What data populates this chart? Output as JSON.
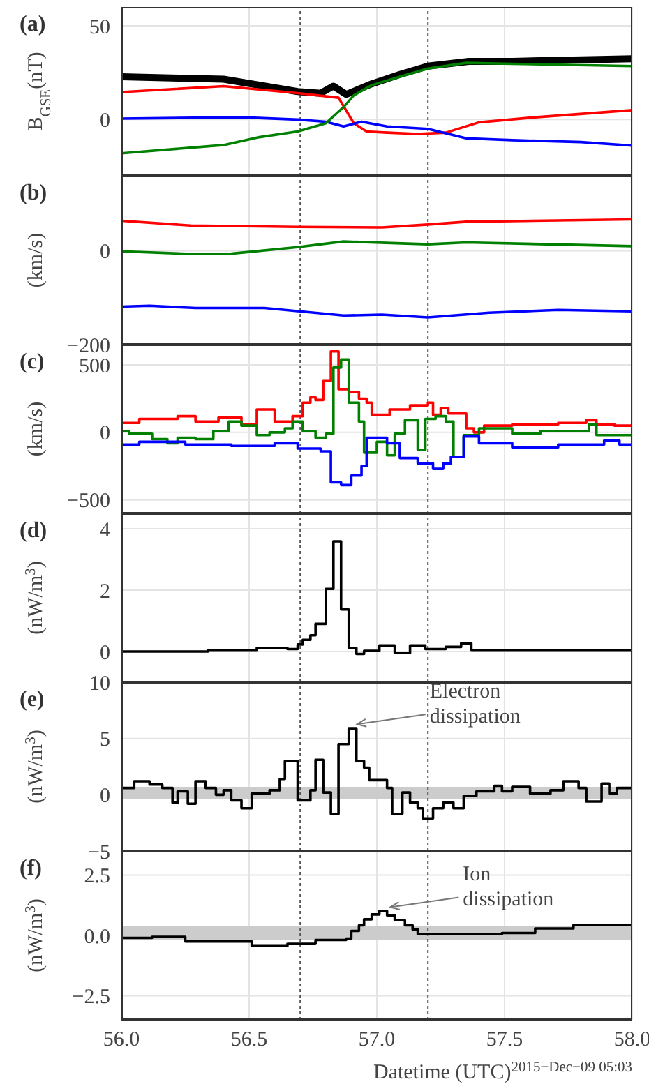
{
  "chart_data": [
    {
      "type": "line",
      "title": "(a)",
      "ylabel": "B$_{GSE}$(nT)",
      "xlim": [
        56,
        58
      ],
      "xticks": [
        56,
        56.5,
        57,
        57.5,
        58
      ],
      "ylim": [
        -30,
        60
      ],
      "yticks": [
        0,
        50
      ],
      "grid": true,
      "tick_labels": "y",
      "ref_lines": [
        {
          "axis": "x",
          "value": 56.7,
          "color": "#555555",
          "line_style": "dotted"
        },
        {
          "axis": "x",
          "value": 57.2,
          "color": "#555555",
          "line_style": "dotted"
        }
      ],
      "series": [
        {
          "color": "#000000",
          "x": [
            56,
            56.4,
            56.51,
            56.69,
            56.78,
            56.83,
            56.88,
            56.98,
            57.09,
            57.2,
            57.36,
            57.53,
            58
          ],
          "values": [
            22.8,
            21.5,
            19,
            14.9,
            14,
            17.8,
            13.4,
            19,
            24,
            28.5,
            31,
            31,
            32.4
          ]
        },
        {
          "color": "#ff0000",
          "x": [
            56,
            56.4,
            56.69,
            56.85,
            56.91,
            56.96,
            57.04,
            57.16,
            57.27,
            57.4,
            57.62,
            58
          ],
          "values": [
            14.6,
            17.8,
            14.1,
            11.6,
            -2,
            -6.4,
            -7,
            -7.7,
            -7,
            -1.5,
            1.2,
            5
          ]
        },
        {
          "color": "#0000ff",
          "x": [
            56,
            56.47,
            56.69,
            56.8,
            56.87,
            56.94,
            57.04,
            57.2,
            57.35,
            57.53,
            57.8,
            58
          ],
          "values": [
            0.5,
            1.2,
            0,
            -1.2,
            -3.7,
            -1.2,
            -3.7,
            -5,
            -10,
            -11,
            -12,
            -13.9
          ]
        },
        {
          "color": "#008000",
          "x": [
            56,
            56.4,
            56.54,
            56.69,
            56.8,
            56.87,
            56.91,
            56.98,
            57.09,
            57.2,
            57.35,
            57.53,
            58
          ],
          "values": [
            -18,
            -13.6,
            -9.4,
            -6.4,
            -2,
            6.7,
            12.9,
            18.3,
            22.8,
            27.2,
            30.2,
            29.7,
            28.5
          ]
        }
      ]
    },
    {
      "type": "line",
      "title": "(b)",
      "ylabel": "(km/s)",
      "xlim": [
        56,
        58
      ],
      "xticks": [
        56,
        56.5,
        57,
        57.5,
        58
      ],
      "ylim": [
        -200,
        160
      ],
      "yticks": [
        {
          "value": -200,
          "label": "−200"
        },
        0
      ],
      "grid": true,
      "tick_labels": "y",
      "ref_lines": [
        {
          "axis": "x",
          "value": 56.7,
          "color": "#555555",
          "line_style": "dotted"
        },
        {
          "axis": "x",
          "value": 57.2,
          "color": "#555555",
          "line_style": "dotted"
        }
      ],
      "series": [
        {
          "color": "#ff0000",
          "x": [
            56,
            56.27,
            56.69,
            57.02,
            57.2,
            57.35,
            58
          ],
          "values": [
            64,
            54,
            51,
            50,
            56,
            62,
            67
          ]
        },
        {
          "color": "#008000",
          "x": [
            56,
            56.29,
            56.43,
            56.69,
            56.87,
            57.2,
            57.35,
            58
          ],
          "values": [
            -1,
            -7,
            -6,
            8,
            20,
            14,
            18,
            10
          ]
        },
        {
          "color": "#0000ff",
          "x": [
            56,
            56.11,
            56.29,
            56.56,
            56.87,
            57.02,
            57.2,
            57.44,
            57.71,
            58
          ],
          "values": [
            -119,
            -117,
            -122,
            -122,
            -138,
            -136,
            -142,
            -132,
            -126,
            -129
          ]
        }
      ]
    },
    {
      "type": "step",
      "title": "(c)",
      "ylabel": "(km/s)",
      "xlim": [
        56,
        58
      ],
      "xticks": [
        56,
        56.5,
        57,
        57.5,
        58
      ],
      "ylim": [
        -600,
        650
      ],
      "yticks": [
        {
          "value": -500,
          "label": "−500"
        },
        0,
        500
      ],
      "grid": true,
      "tick_labels": "y",
      "ref_lines": [
        {
          "axis": "x",
          "value": 56.7,
          "color": "#555555",
          "line_style": "dotted"
        },
        {
          "axis": "x",
          "value": 57.2,
          "color": "#555555",
          "line_style": "dotted"
        }
      ],
      "series": [
        {
          "color": "#ff0000",
          "x": [
            56,
            56.07,
            56.18,
            56.22,
            56.29,
            56.38,
            56.47,
            56.53,
            56.6,
            56.67,
            56.71,
            56.74,
            56.76,
            56.79,
            56.82,
            56.85,
            56.89,
            56.93,
            56.96,
            56.98,
            57.05,
            57.13,
            57.2,
            57.22,
            57.25,
            57.28,
            57.35,
            57.38,
            57.42,
            57.53,
            57.71,
            57.82,
            57.86,
            57.93,
            58
          ],
          "values": [
            70,
            100,
            100,
            120,
            80,
            110,
            60,
            170,
            80,
            120,
            220,
            260,
            240,
            380,
            600,
            320,
            300,
            250,
            220,
            130,
            170,
            200,
            220,
            130,
            180,
            140,
            30,
            0,
            50,
            60,
            70,
            90,
            60,
            50,
            40
          ]
        },
        {
          "color": "#008000",
          "x": [
            56,
            56.03,
            56.12,
            56.18,
            56.22,
            56.29,
            56.36,
            56.42,
            56.47,
            56.53,
            56.58,
            56.64,
            56.67,
            56.71,
            56.76,
            56.8,
            56.83,
            56.86,
            56.89,
            56.93,
            56.95,
            57,
            57.04,
            57.07,
            57.11,
            57.16,
            57.19,
            57.23,
            57.27,
            57.3,
            57.34,
            57.4,
            57.53,
            57.64,
            57.79,
            57.83,
            57.86,
            58
          ],
          "values": [
            10,
            -10,
            -50,
            -80,
            -40,
            -50,
            10,
            80,
            50,
            -20,
            0,
            30,
            80,
            10,
            -40,
            -10,
            480,
            540,
            220,
            80,
            -150,
            -70,
            -170,
            -10,
            90,
            -130,
            100,
            120,
            80,
            -180,
            -20,
            30,
            -10,
            10,
            10,
            60,
            -20,
            -50
          ]
        },
        {
          "color": "#0000ff",
          "x": [
            56,
            56.07,
            56.25,
            56.43,
            56.6,
            56.69,
            56.78,
            56.82,
            56.86,
            56.9,
            56.94,
            56.96,
            57.04,
            57.09,
            57.16,
            57.22,
            57.26,
            57.29,
            57.34,
            57.4,
            57.53,
            57.71,
            57.89,
            57.95,
            58
          ],
          "values": [
            -90,
            -70,
            -90,
            -100,
            -80,
            -120,
            -140,
            -370,
            -390,
            -320,
            -250,
            -40,
            -80,
            -190,
            -230,
            -270,
            -230,
            -180,
            -30,
            -80,
            -110,
            -90,
            -60,
            -90,
            -100
          ]
        }
      ]
    },
    {
      "type": "step",
      "title": "(d)",
      "ylabel": "(nW/m$^{3}$)",
      "xlim": [
        56,
        58
      ],
      "xticks": [
        56,
        56.5,
        57,
        57.5,
        58
      ],
      "ylim": [
        -1,
        4.5
      ],
      "yticks": [
        0,
        2,
        4
      ],
      "grid": true,
      "tick_labels": "y",
      "ref_lines": [
        {
          "axis": "x",
          "value": 56.7,
          "color": "#555555",
          "line_style": "dotted"
        },
        {
          "axis": "x",
          "value": 57.2,
          "color": "#555555",
          "line_style": "dotted"
        }
      ],
      "series": [
        {
          "color": "#000000",
          "x": [
            56,
            56.34,
            56.53,
            56.65,
            56.69,
            56.71,
            56.74,
            56.76,
            56.8,
            56.83,
            56.86,
            56.89,
            56.92,
            56.95,
            57.01,
            57.07,
            57.13,
            57.19,
            57.27,
            57.33,
            57.37,
            58
          ],
          "values": [
            0,
            0.05,
            0.12,
            0.08,
            0.23,
            0.38,
            0.53,
            0.9,
            2.04,
            3.59,
            1.37,
            0.12,
            -0.08,
            0.02,
            0.2,
            -0.05,
            0.2,
            0.08,
            0.15,
            0.27,
            0.05,
            0.02
          ]
        }
      ]
    },
    {
      "type": "step",
      "title": "(e)",
      "ylabel": "(nW/m$^{3}$)",
      "xlim": [
        56,
        58
      ],
      "xticks": [
        56,
        56.5,
        57,
        57.5,
        58
      ],
      "ylim": [
        -5,
        10
      ],
      "yticks": [
        {
          "value": -5,
          "label": "−5"
        },
        0,
        5,
        10
      ],
      "grid": true,
      "tick_labels": "y",
      "ref_lines": [
        {
          "axis": "x",
          "value": 56.7,
          "color": "#555555",
          "line_style": "dotted"
        },
        {
          "axis": "x",
          "value": 57.2,
          "color": "#555555",
          "line_style": "dotted"
        }
      ],
      "bands": [
        {
          "axis": "y",
          "from": -0.4,
          "to": 0.7,
          "color": "#cccccc"
        }
      ],
      "annotations": [
        {
          "text": "Electron dissipation",
          "x": 56.89,
          "y": 5.9
        }
      ],
      "series": [
        {
          "color": "#000000",
          "x": [
            56,
            56.05,
            56.11,
            56.16,
            56.2,
            56.22,
            56.26,
            56.29,
            56.33,
            56.37,
            56.4,
            56.43,
            56.47,
            56.51,
            56.58,
            56.62,
            56.64,
            56.69,
            56.74,
            56.76,
            56.79,
            56.82,
            56.85,
            56.89,
            56.92,
            56.95,
            56.97,
            57.04,
            57.06,
            57.1,
            57.13,
            57.16,
            57.18,
            57.22,
            57.26,
            57.3,
            57.34,
            57.39,
            57.46,
            57.49,
            57.53,
            57.6,
            57.68,
            57.73,
            57.79,
            57.82,
            57.88,
            57.91,
            57.94,
            58
          ],
          "values": [
            0.6,
            1.2,
            0.9,
            0.6,
            -0.7,
            0.3,
            -0.8,
            1.2,
            0.6,
            0,
            0.4,
            -0.5,
            -1.2,
            0.1,
            0.4,
            1.4,
            3,
            -0.5,
            0.4,
            3.1,
            0.2,
            -1.7,
            4.5,
            5.9,
            3,
            2.4,
            1.3,
            0.6,
            -1.7,
            0.2,
            -0.7,
            -1.2,
            -2.1,
            -1.2,
            -0.7,
            -1.2,
            -0.1,
            0.3,
            0.8,
            0.3,
            0.7,
            0.1,
            0.4,
            1.2,
            0.6,
            -0.6,
            1,
            0.1,
            0.6,
            0.6
          ]
        }
      ]
    },
    {
      "type": "step",
      "title": "(f)",
      "ylabel": "(nW/m$^{3}$)",
      "xlabel": "Datetime (UTC)$^{2015−Dec−09 05:03}$",
      "xlim": [
        56,
        58
      ],
      "xticks": [
        {
          "value": 56,
          "label": "56.0"
        },
        {
          "value": 56.5,
          "label": "56.5"
        },
        {
          "value": 57,
          "label": "57.0"
        },
        {
          "value": 57.5,
          "label": "57.5"
        },
        {
          "value": 58,
          "label": "58.0"
        }
      ],
      "ylim": [
        -3.5,
        3.5
      ],
      "yticks": [
        {
          "value": -2.5,
          "label": "−2.5"
        },
        {
          "value": 0,
          "label": "0.0"
        },
        2.5
      ],
      "grid": true,
      "ref_lines": [
        {
          "axis": "x",
          "value": 56.7,
          "color": "#555555",
          "line_style": "dotted"
        },
        {
          "axis": "x",
          "value": 57.2,
          "color": "#555555",
          "line_style": "dotted"
        }
      ],
      "bands": [
        {
          "axis": "y",
          "from": -0.2,
          "to": 0.4,
          "color": "#cccccc"
        }
      ],
      "annotations": [
        {
          "text": "Ion dissipation",
          "x": 57.02,
          "y": 1.0
        }
      ],
      "series": [
        {
          "color": "#000000",
          "x": [
            56,
            56.12,
            56.25,
            56.36,
            56.51,
            56.65,
            56.76,
            56.88,
            56.9,
            56.93,
            56.95,
            56.98,
            57.01,
            57.04,
            57.07,
            57.11,
            57.14,
            57.16,
            57.35,
            57.49,
            57.62,
            57.77,
            57.89,
            58
          ],
          "values": [
            -0.1,
            -0.06,
            -0.25,
            -0.25,
            -0.44,
            -0.35,
            -0.19,
            -0.13,
            0.19,
            0.42,
            0.67,
            0.87,
            1.02,
            0.83,
            0.63,
            0.42,
            0.25,
            0.06,
            0.06,
            0.1,
            0.29,
            0.44,
            0.44,
            0.35
          ]
        }
      ]
    }
  ]
}
